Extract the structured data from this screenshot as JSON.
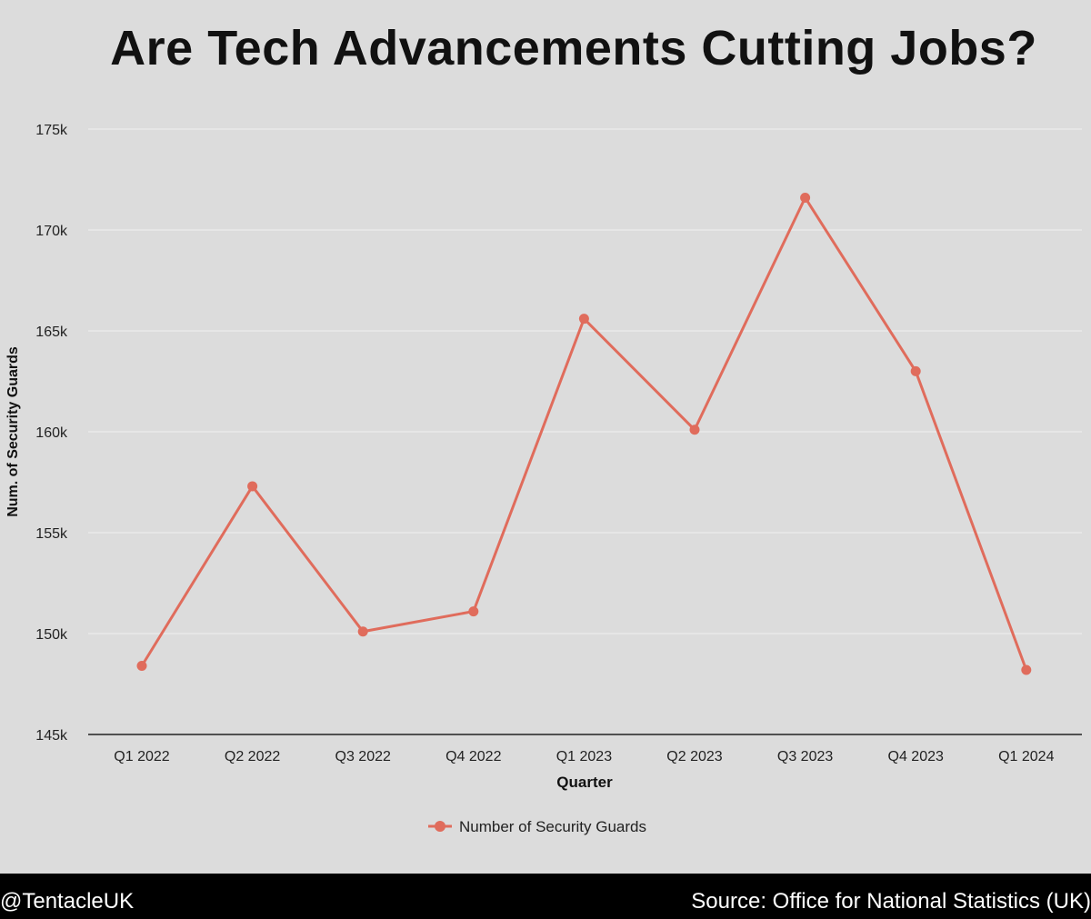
{
  "chart_data": {
    "type": "line",
    "title": "Are Tech Advancements Cutting Jobs?",
    "xlabel": "Quarter",
    "ylabel": "Num. of Security Guards",
    "categories": [
      "Q1 2022",
      "Q2 2022",
      "Q3 2022",
      "Q4 2022",
      "Q1 2023",
      "Q2 2023",
      "Q3 2023",
      "Q4 2023",
      "Q1 2024"
    ],
    "series": [
      {
        "name": "Number of Security Guards",
        "color": "#e06c5c",
        "values": [
          148400,
          157300,
          150100,
          151100,
          165600,
          160100,
          171600,
          163000,
          148200
        ]
      }
    ],
    "ylim": [
      145000,
      175000
    ],
    "yticks": [
      145000,
      150000,
      155000,
      160000,
      165000,
      170000,
      175000
    ],
    "ytick_labels": [
      "145k",
      "150k",
      "155k",
      "160k",
      "165k",
      "170k",
      "175k"
    ],
    "grid": true,
    "legend_position": "bottom"
  },
  "footer": {
    "handle": "@TentacleUK",
    "source": "Source: Office for National Statistics (UK)"
  }
}
